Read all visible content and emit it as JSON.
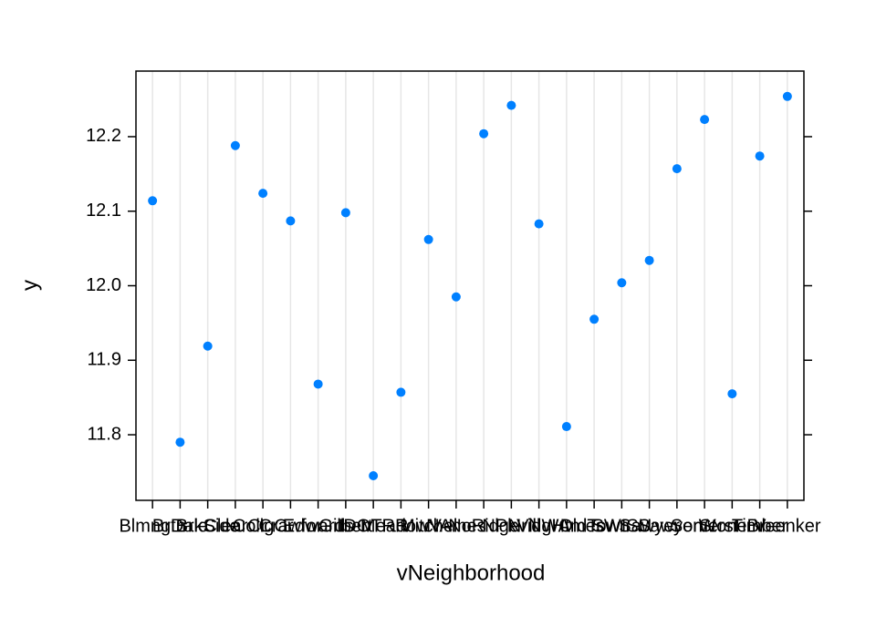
{
  "chart_data": {
    "type": "scatter",
    "x_label": "vNeighborhood",
    "y_label": "y",
    "categories": [
      "Blmngtn",
      "BrDale",
      "BrkSide",
      "ClearCr",
      "CollgCr",
      "Crawfor",
      "Edwards",
      "Gilbert",
      "IDOTRR",
      "MeadowV",
      "Mitchel",
      "NAmes",
      "NoRidge",
      "NPkVill",
      "NridgHt",
      "NWAmes",
      "OldTown",
      "SWISU",
      "Sawyer",
      "SawyerW",
      "Somerst",
      "StoneBr",
      "Timber",
      "Veenker"
    ],
    "values": [
      12.114,
      11.79,
      11.919,
      12.188,
      12.124,
      12.087,
      11.868,
      12.098,
      11.745,
      11.857,
      12.062,
      11.985,
      12.204,
      12.242,
      12.083,
      11.811,
      11.955,
      12.004,
      12.034,
      12.157,
      12.223,
      11.855,
      12.174,
      12.254
    ],
    "color": "#0080ff",
    "ylim": [
      11.712,
      12.288
    ],
    "yticks": [
      {
        "value": 11.8,
        "label": "11.8"
      },
      {
        "value": 11.9,
        "label": "11.9"
      },
      {
        "value": 12.0,
        "label": "12.0"
      },
      {
        "value": 12.1,
        "label": "12.1"
      },
      {
        "value": 12.2,
        "label": "12.2"
      }
    ],
    "grid": true
  }
}
